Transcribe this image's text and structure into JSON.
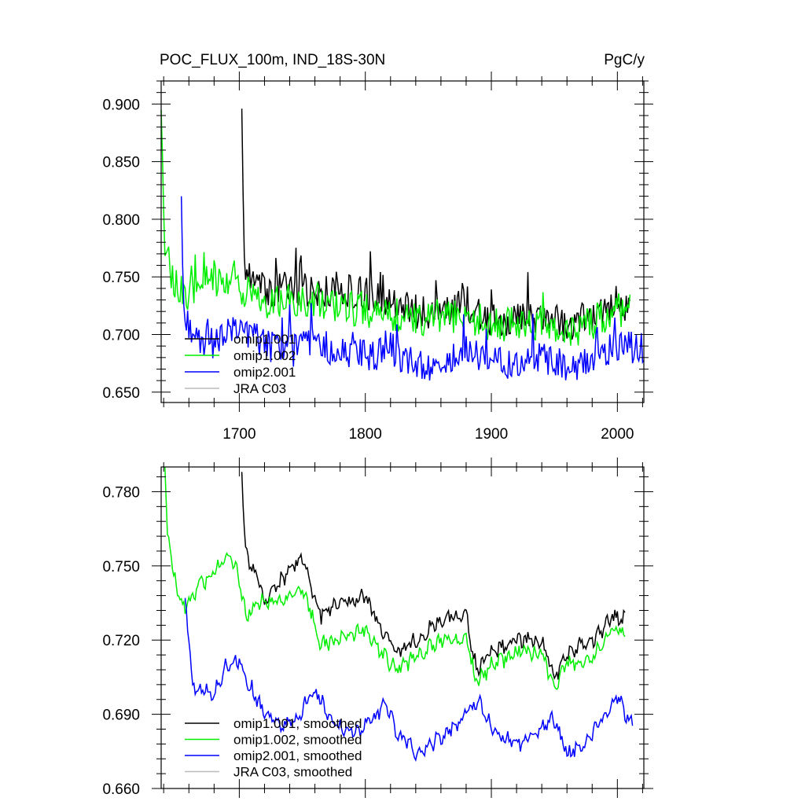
{
  "chart_data": [
    {
      "type": "line",
      "title": "POC_FLUX_100m, IND_18S-30N",
      "units": "PgC/y",
      "xlim": [
        1638,
        2021
      ],
      "ylim": [
        0.641,
        0.92
      ],
      "x_ticks": [
        1700,
        1800,
        1900,
        2000
      ],
      "y_ticks": [
        0.9,
        0.85,
        0.8,
        0.75,
        0.7,
        0.65
      ],
      "y_tick_labels": [
        "0.900",
        "0.850",
        "0.800",
        "0.750",
        "0.700",
        "0.650"
      ],
      "legend_position": "lower-left",
      "series": [
        {
          "name": "omip1.001",
          "color": "#000000",
          "start": 1702,
          "end": 2010,
          "anchors": [
            [
              1702,
              0.896
            ],
            [
              1704,
              0.76
            ],
            [
              1710,
              0.745
            ],
            [
              1720,
              0.738
            ],
            [
              1740,
              0.74
            ],
            [
              1760,
              0.737
            ],
            [
              1780,
              0.74
            ],
            [
              1800,
              0.735
            ],
            [
              1820,
              0.727
            ],
            [
              1840,
              0.72
            ],
            [
              1860,
              0.72
            ],
            [
              1880,
              0.725
            ],
            [
              1900,
              0.712
            ],
            [
              1920,
              0.715
            ],
            [
              1940,
              0.715
            ],
            [
              1960,
              0.708
            ],
            [
              1980,
              0.715
            ],
            [
              2000,
              0.728
            ],
            [
              2010,
              0.725
            ]
          ]
        },
        {
          "name": "omip1.002",
          "color": "#00ee00",
          "start": 1638,
          "end": 2010,
          "anchors": [
            [
              1638,
              0.895
            ],
            [
              1641,
              0.77
            ],
            [
              1650,
              0.742
            ],
            [
              1660,
              0.735
            ],
            [
              1670,
              0.745
            ],
            [
              1690,
              0.75
            ],
            [
              1702,
              0.74
            ],
            [
              1720,
              0.728
            ],
            [
              1740,
              0.73
            ],
            [
              1760,
              0.73
            ],
            [
              1780,
              0.725
            ],
            [
              1800,
              0.72
            ],
            [
              1820,
              0.718
            ],
            [
              1840,
              0.712
            ],
            [
              1860,
              0.713
            ],
            [
              1880,
              0.718
            ],
            [
              1900,
              0.705
            ],
            [
              1920,
              0.71
            ],
            [
              1940,
              0.71
            ],
            [
              1960,
              0.7
            ],
            [
              1980,
              0.71
            ],
            [
              2000,
              0.722
            ],
            [
              2010,
              0.72
            ]
          ]
        },
        {
          "name": "omip2.001",
          "color": "#0000ff",
          "start": 1654,
          "end": 2021,
          "anchors": [
            [
              1654,
              0.82
            ],
            [
              1656,
              0.73
            ],
            [
              1660,
              0.7
            ],
            [
              1680,
              0.693
            ],
            [
              1700,
              0.705
            ],
            [
              1720,
              0.69
            ],
            [
              1740,
              0.685
            ],
            [
              1760,
              0.695
            ],
            [
              1780,
              0.685
            ],
            [
              1800,
              0.68
            ],
            [
              1820,
              0.688
            ],
            [
              1840,
              0.672
            ],
            [
              1860,
              0.675
            ],
            [
              1880,
              0.685
            ],
            [
              1900,
              0.675
            ],
            [
              1920,
              0.676
            ],
            [
              1940,
              0.678
            ],
            [
              1960,
              0.672
            ],
            [
              1980,
              0.68
            ],
            [
              2000,
              0.69
            ],
            [
              2021,
              0.69
            ]
          ]
        },
        {
          "name": "JRA C03",
          "color": "#bbbbbb",
          "start": null,
          "end": null,
          "anchors": []
        }
      ]
    },
    {
      "type": "line",
      "xlim": [
        1638,
        2021
      ],
      "ylim": [
        0.66,
        0.79
      ],
      "x_ticks": [
        1700,
        1800,
        1900,
        2000
      ],
      "y_ticks": [
        0.78,
        0.75,
        0.72,
        0.69,
        0.66
      ],
      "y_tick_labels": [
        "0.780",
        "0.750",
        "0.720",
        "0.690",
        "0.660"
      ],
      "legend_position": "lower-left",
      "series": [
        {
          "name": "omip1.001, smoothed",
          "color": "#000000",
          "start": 1702,
          "end": 2006,
          "anchors": [
            [
              1702,
              0.788
            ],
            [
              1705,
              0.755
            ],
            [
              1715,
              0.745
            ],
            [
              1720,
              0.735
            ],
            [
              1730,
              0.742
            ],
            [
              1740,
              0.748
            ],
            [
              1750,
              0.753
            ],
            [
              1758,
              0.74
            ],
            [
              1765,
              0.73
            ],
            [
              1780,
              0.735
            ],
            [
              1800,
              0.738
            ],
            [
              1812,
              0.725
            ],
            [
              1825,
              0.715
            ],
            [
              1840,
              0.72
            ],
            [
              1860,
              0.728
            ],
            [
              1880,
              0.73
            ],
            [
              1888,
              0.708
            ],
            [
              1900,
              0.715
            ],
            [
              1920,
              0.72
            ],
            [
              1940,
              0.72
            ],
            [
              1950,
              0.705
            ],
            [
              1960,
              0.715
            ],
            [
              1980,
              0.72
            ],
            [
              1998,
              0.73
            ],
            [
              2006,
              0.728
            ]
          ]
        },
        {
          "name": "omip1.002, smoothed",
          "color": "#00ee00",
          "start": 1641,
          "end": 2006,
          "anchors": [
            [
              1641,
              0.79
            ],
            [
              1643,
              0.765
            ],
            [
              1647,
              0.748
            ],
            [
              1652,
              0.74
            ],
            [
              1656,
              0.732
            ],
            [
              1665,
              0.74
            ],
            [
              1680,
              0.748
            ],
            [
              1692,
              0.755
            ],
            [
              1700,
              0.745
            ],
            [
              1705,
              0.73
            ],
            [
              1715,
              0.735
            ],
            [
              1730,
              0.735
            ],
            [
              1740,
              0.738
            ],
            [
              1750,
              0.74
            ],
            [
              1758,
              0.73
            ],
            [
              1765,
              0.718
            ],
            [
              1780,
              0.72
            ],
            [
              1800,
              0.725
            ],
            [
              1812,
              0.715
            ],
            [
              1825,
              0.708
            ],
            [
              1840,
              0.713
            ],
            [
              1860,
              0.72
            ],
            [
              1880,
              0.72
            ],
            [
              1888,
              0.703
            ],
            [
              1900,
              0.71
            ],
            [
              1920,
              0.715
            ],
            [
              1940,
              0.715
            ],
            [
              1950,
              0.7
            ],
            [
              1960,
              0.71
            ],
            [
              1980,
              0.713
            ],
            [
              1998,
              0.725
            ],
            [
              2006,
              0.722
            ]
          ]
        },
        {
          "name": "omip2.001, smoothed",
          "color": "#0000ff",
          "start": 1657,
          "end": 2012,
          "anchors": [
            [
              1657,
              0.737
            ],
            [
              1660,
              0.72
            ],
            [
              1663,
              0.702
            ],
            [
              1670,
              0.7
            ],
            [
              1680,
              0.698
            ],
            [
              1690,
              0.71
            ],
            [
              1700,
              0.712
            ],
            [
              1708,
              0.702
            ],
            [
              1720,
              0.69
            ],
            [
              1735,
              0.685
            ],
            [
              1748,
              0.69
            ],
            [
              1760,
              0.7
            ],
            [
              1770,
              0.69
            ],
            [
              1780,
              0.685
            ],
            [
              1795,
              0.683
            ],
            [
              1810,
              0.69
            ],
            [
              1815,
              0.695
            ],
            [
              1825,
              0.683
            ],
            [
              1840,
              0.675
            ],
            [
              1860,
              0.68
            ],
            [
              1880,
              0.69
            ],
            [
              1890,
              0.695
            ],
            [
              1900,
              0.685
            ],
            [
              1910,
              0.68
            ],
            [
              1920,
              0.678
            ],
            [
              1940,
              0.684
            ],
            [
              1948,
              0.69
            ],
            [
              1960,
              0.674
            ],
            [
              1975,
              0.678
            ],
            [
              1990,
              0.69
            ],
            [
              2000,
              0.698
            ],
            [
              2006,
              0.69
            ],
            [
              2012,
              0.688
            ]
          ]
        },
        {
          "name": "JRA C03, smoothed",
          "color": "#bbbbbb",
          "start": null,
          "end": null,
          "anchors": []
        }
      ]
    }
  ]
}
